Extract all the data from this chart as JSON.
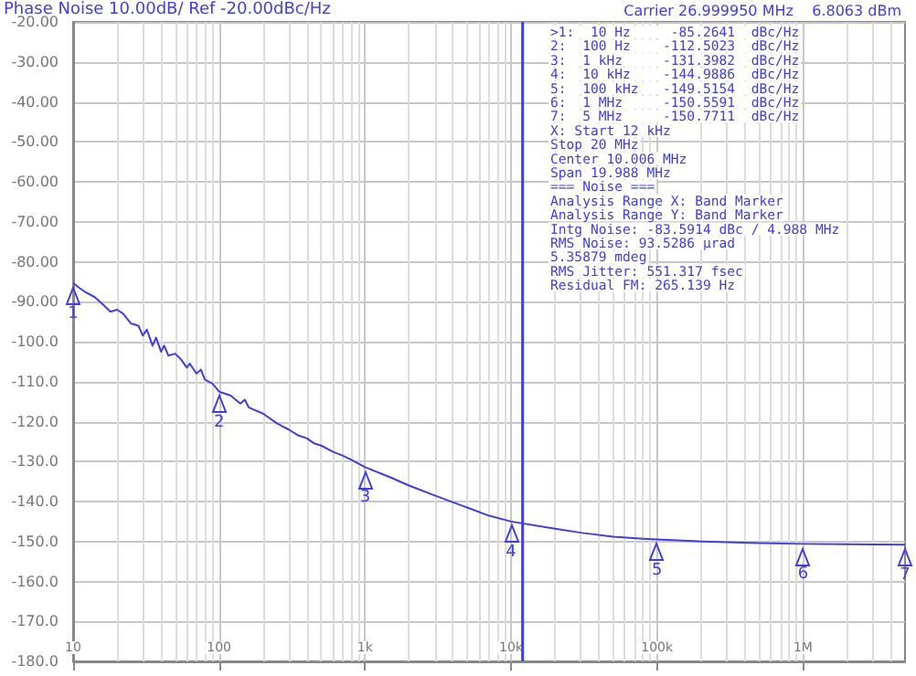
{
  "chart_data": {
    "type": "line",
    "title": "Phase Noise 10.00dB/ Ref -20.00dBc/Hz",
    "x": [
      10,
      11,
      12,
      14,
      16,
      18,
      20,
      22,
      25,
      28,
      30,
      32,
      35,
      37,
      40,
      42,
      45,
      50,
      55,
      60,
      63,
      70,
      75,
      80,
      90,
      100,
      120,
      140,
      150,
      160,
      200,
      250,
      300,
      350,
      400,
      450,
      500,
      600,
      700,
      800,
      1000,
      1500,
      2000,
      3000,
      5000,
      7000,
      10000,
      20000,
      30000,
      50000,
      80000,
      100000,
      200000,
      500000,
      1000000,
      2000000,
      5000000
    ],
    "series": [
      {
        "color": "#3f3fe0",
        "values": [
          -85.3,
          -86.5,
          -87.5,
          -88.8,
          -90.7,
          -92.5,
          -92,
          -93,
          -95.5,
          -96,
          -98.5,
          -97,
          -101,
          -99,
          -102.5,
          -101,
          -103.5,
          -103,
          -104.5,
          -106.5,
          -105.5,
          -108,
          -107,
          -109.5,
          -110.5,
          -112.5,
          -113.5,
          -115.5,
          -114.5,
          -116.5,
          -118,
          -120.5,
          -122,
          -123.5,
          -124.2,
          -125.5,
          -126,
          -127.5,
          -128.5,
          -129.5,
          -131.4,
          -134,
          -136,
          -138.5,
          -141.5,
          -143.5,
          -145,
          -146.8,
          -147.8,
          -148.8,
          -149.3,
          -149.5,
          -150,
          -150.4,
          -150.6,
          -150.7,
          -150.8
        ]
      }
    ],
    "log": "x",
    "xlim": [
      10,
      5000000
    ],
    "xticks": [
      {
        "value": 10,
        "label": "10"
      },
      {
        "value": 100,
        "label": "100"
      },
      {
        "value": 1000,
        "label": "1k"
      },
      {
        "value": 10000,
        "label": "10k"
      },
      {
        "value": 100000,
        "label": "100k"
      },
      {
        "value": 1000000,
        "label": "1M"
      }
    ],
    "ylim": [
      -180,
      -20
    ],
    "yticks": [
      {
        "value": -180,
        "label": "-180.0"
      },
      {
        "value": -170,
        "label": "-170.0"
      },
      {
        "value": -160,
        "label": "-160.0"
      },
      {
        "value": -150,
        "label": "-150.0"
      },
      {
        "value": -140,
        "label": "-140.0"
      },
      {
        "value": -130,
        "label": "-130.0"
      },
      {
        "value": -120,
        "label": "-120.0"
      },
      {
        "value": -110,
        "label": "-110.0"
      },
      {
        "value": -100,
        "label": "-100.0"
      },
      {
        "value": -90,
        "label": "-90.00"
      },
      {
        "value": -80,
        "label": "-80.00"
      },
      {
        "value": -70,
        "label": "-70.00"
      },
      {
        "value": -60,
        "label": "-60.00"
      },
      {
        "value": -50,
        "label": "-50.00"
      },
      {
        "value": -40,
        "label": "-40.00"
      },
      {
        "value": -30,
        "label": "-30.00"
      },
      {
        "value": -20,
        "label": "-20.00"
      }
    ],
    "grid": true,
    "marker": "none",
    "line_style": "solid",
    "ref_lines": [
      {
        "axis": "x",
        "value": 12000,
        "color": "#3f3fe0"
      }
    ],
    "annotations": [
      "Carrier 26.999950 MHz    6.8063 dBm",
      ">1:  10 Hz     -85.2641  dBc/Hz",
      "2:  100 Hz    -112.5023  dBc/Hz",
      "3:  1 kHz     -131.3982  dBc/Hz",
      "4:  10 kHz    -144.9886  dBc/Hz",
      "5:  100 kHz   -149.5154  dBc/Hz",
      "6:  1 MHz     -150.5591  dBc/Hz",
      "7:  5 MHz     -150.7711  dBc/Hz",
      "X: Start 12 kHz",
      "Stop 20 MHz",
      "Center 10.006 MHz",
      "Span 19.988 MHz",
      "=== Noise ===",
      "Analysis Range X: Band Marker",
      "Analysis Range Y: Band Marker",
      "Intg Noise: -83.5914 dBc / 4.988 MHz",
      "RMS Noise: 93.5286 µrad",
      "5.35879 mdeg",
      "RMS Jitter: 551.317 fsec",
      "Residual FM: 265.139 Hz",
      {
        "text": "1",
        "x": 10,
        "y": -85.2641
      },
      {
        "text": "2",
        "x": 100,
        "y": -112.5023
      },
      {
        "text": "3",
        "x": 1000,
        "y": -131.3982
      },
      {
        "text": "4",
        "x": 10000,
        "y": -144.9886
      },
      {
        "text": "5",
        "x": 100000,
        "y": -149.5154
      },
      {
        "text": "6",
        "x": 1000000,
        "y": -150.5591
      },
      {
        "text": "7",
        "x": 5000000,
        "y": -150.7711
      }
    ]
  }
}
